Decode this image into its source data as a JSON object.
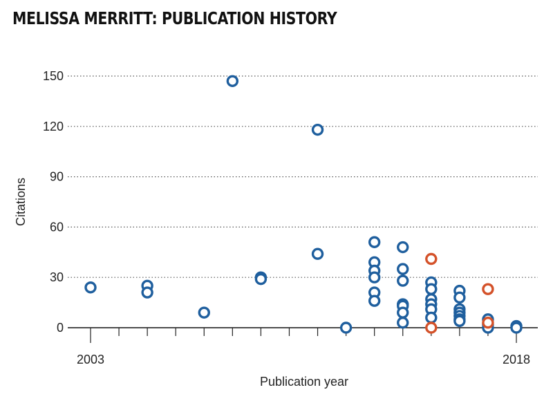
{
  "chart_data": {
    "type": "scatter",
    "title": "MELISSA MERRITT: PUBLICATION HISTORY",
    "xlabel": "Publication year",
    "ylabel": "Citations",
    "xlim": [
      2003,
      2018
    ],
    "ylim": [
      0,
      150
    ],
    "x_ticks_labeled": [
      2003,
      2018
    ],
    "y_ticks": [
      0,
      30,
      60,
      90,
      120,
      150
    ],
    "grid": "horizontal dotted",
    "colors": {
      "blue": "#1f5f9e",
      "orange": "#d4522a"
    },
    "series": [
      {
        "color": "blue",
        "points": [
          {
            "x": 2003,
            "y": 24
          },
          {
            "x": 2005,
            "y": 25
          },
          {
            "x": 2005,
            "y": 21
          },
          {
            "x": 2007,
            "y": 9
          },
          {
            "x": 2008,
            "y": 147
          },
          {
            "x": 2009,
            "y": 30
          },
          {
            "x": 2009,
            "y": 29
          },
          {
            "x": 2011,
            "y": 44
          },
          {
            "x": 2011,
            "y": 118
          },
          {
            "x": 2012,
            "y": 0
          },
          {
            "x": 2013,
            "y": 51
          },
          {
            "x": 2013,
            "y": 39
          },
          {
            "x": 2013,
            "y": 34
          },
          {
            "x": 2013,
            "y": 30
          },
          {
            "x": 2013,
            "y": 21
          },
          {
            "x": 2013,
            "y": 16
          },
          {
            "x": 2014,
            "y": 48
          },
          {
            "x": 2014,
            "y": 35
          },
          {
            "x": 2014,
            "y": 28
          },
          {
            "x": 2014,
            "y": 14
          },
          {
            "x": 2014,
            "y": 13
          },
          {
            "x": 2014,
            "y": 9
          },
          {
            "x": 2014,
            "y": 3
          },
          {
            "x": 2015,
            "y": 27
          },
          {
            "x": 2015,
            "y": 23
          },
          {
            "x": 2015,
            "y": 17
          },
          {
            "x": 2015,
            "y": 14
          },
          {
            "x": 2015,
            "y": 11
          },
          {
            "x": 2015,
            "y": 6
          },
          {
            "x": 2016,
            "y": 22
          },
          {
            "x": 2016,
            "y": 18
          },
          {
            "x": 2016,
            "y": 11
          },
          {
            "x": 2016,
            "y": 9
          },
          {
            "x": 2016,
            "y": 7
          },
          {
            "x": 2016,
            "y": 5
          },
          {
            "x": 2016,
            "y": 4
          },
          {
            "x": 2017,
            "y": 5
          },
          {
            "x": 2017,
            "y": 2
          },
          {
            "x": 2017,
            "y": 0
          },
          {
            "x": 2018,
            "y": 1
          },
          {
            "x": 2018,
            "y": 0
          }
        ]
      },
      {
        "color": "orange",
        "points": [
          {
            "x": 2015,
            "y": 41
          },
          {
            "x": 2015,
            "y": 0
          },
          {
            "x": 2017,
            "y": 23
          },
          {
            "x": 2017,
            "y": 3
          }
        ]
      }
    ]
  }
}
